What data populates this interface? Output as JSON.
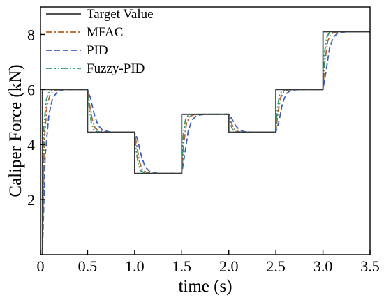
{
  "chart_data": {
    "type": "line",
    "title": "",
    "xlabel": "time (s)",
    "ylabel": "Caliper Force (kN)",
    "xlim": [
      0,
      3.5
    ],
    "ylim": [
      0,
      9
    ],
    "xticks": [
      0,
      0.5,
      1.0,
      1.5,
      2.0,
      2.5,
      3.0,
      3.5
    ],
    "xtick_labels": [
      "0",
      "0.5",
      "1.0",
      "1.5",
      "2.0",
      "2.5",
      "3.0",
      "3.5"
    ],
    "yticks": [
      2,
      4,
      6,
      8
    ],
    "ytick_labels": [
      "2",
      "4",
      "6",
      "8"
    ],
    "grid": false,
    "legend_position": "top-left",
    "series": [
      {
        "name": "Target Value",
        "color": "#3a3a3a",
        "style": "solid",
        "x": [
          0,
          0.02,
          0.02,
          0.5,
          0.5,
          1.0,
          1.0,
          1.5,
          1.5,
          2.0,
          2.0,
          2.5,
          2.5,
          3.0,
          3.0,
          3.5
        ],
        "y": [
          0,
          0,
          6.0,
          6.0,
          4.45,
          4.45,
          2.95,
          2.95,
          5.1,
          5.1,
          4.45,
          4.45,
          6.0,
          6.0,
          8.1,
          8.1
        ]
      },
      {
        "name": "MFAC",
        "color": "#b5652a",
        "style": "dashdot",
        "x": [
          0.02,
          0.04,
          0.07,
          0.1,
          0.14,
          0.2,
          0.5,
          0.52,
          0.55,
          0.58,
          0.62,
          0.7,
          1.0,
          1.02,
          1.05,
          1.08,
          1.12,
          1.2,
          1.5,
          1.52,
          1.55,
          1.58,
          1.62,
          1.7,
          2.0,
          2.02,
          2.05,
          2.08,
          2.12,
          2.2,
          2.5,
          2.52,
          2.55,
          2.58,
          2.62,
          2.7,
          3.0,
          3.02,
          3.05,
          3.08,
          3.12,
          3.2,
          3.5
        ],
        "y": [
          0,
          4.2,
          5.4,
          5.8,
          5.95,
          6.0,
          6.0,
          5.5,
          4.9,
          4.6,
          4.5,
          4.45,
          4.45,
          4.0,
          3.4,
          3.1,
          3.0,
          2.95,
          2.95,
          4.0,
          4.75,
          5.0,
          5.08,
          5.1,
          5.1,
          4.85,
          4.6,
          4.5,
          4.46,
          4.45,
          4.45,
          5.1,
          5.7,
          5.9,
          5.98,
          6.0,
          6.0,
          7.0,
          7.75,
          8.0,
          8.08,
          8.1,
          8.1
        ]
      },
      {
        "name": "PID",
        "color": "#3d5fc4",
        "style": "dashed",
        "x": [
          0.02,
          0.05,
          0.09,
          0.13,
          0.18,
          0.25,
          0.5,
          0.53,
          0.57,
          0.61,
          0.66,
          0.75,
          1.0,
          1.03,
          1.07,
          1.11,
          1.16,
          1.25,
          1.5,
          1.53,
          1.57,
          1.61,
          1.66,
          1.75,
          2.0,
          2.03,
          2.07,
          2.11,
          2.16,
          2.25,
          2.5,
          2.53,
          2.57,
          2.61,
          2.66,
          2.75,
          3.0,
          3.03,
          3.07,
          3.11,
          3.16,
          3.25,
          3.5
        ],
        "y": [
          0,
          3.6,
          5.1,
          5.7,
          5.92,
          6.0,
          6.0,
          5.7,
          5.1,
          4.7,
          4.52,
          4.45,
          4.45,
          4.2,
          3.6,
          3.2,
          3.02,
          2.95,
          2.95,
          3.6,
          4.5,
          4.9,
          5.06,
          5.1,
          5.1,
          4.95,
          4.7,
          4.55,
          4.47,
          4.45,
          4.45,
          4.8,
          5.5,
          5.85,
          5.97,
          6.0,
          6.0,
          6.6,
          7.5,
          7.9,
          8.06,
          8.1,
          8.1
        ]
      },
      {
        "name": "Fuzzy-PID",
        "color": "#2e9a73",
        "style": "dashdotdot",
        "x": [
          0.02,
          0.035,
          0.06,
          0.085,
          0.12,
          0.17,
          0.5,
          0.515,
          0.54,
          0.565,
          0.6,
          0.65,
          1.0,
          1.015,
          1.04,
          1.065,
          1.1,
          1.15,
          1.5,
          1.515,
          1.54,
          1.565,
          1.6,
          1.65,
          2.0,
          2.015,
          2.04,
          2.065,
          2.1,
          2.15,
          2.5,
          2.515,
          2.54,
          2.565,
          2.6,
          2.65,
          3.0,
          3.015,
          3.04,
          3.065,
          3.1,
          3.15,
          3.5
        ],
        "y": [
          0,
          4.6,
          5.6,
          5.88,
          5.97,
          6.0,
          6.0,
          5.4,
          4.8,
          4.55,
          4.47,
          4.45,
          4.45,
          3.8,
          3.25,
          3.05,
          2.98,
          2.95,
          2.95,
          4.3,
          4.9,
          5.05,
          5.09,
          5.1,
          5.1,
          4.8,
          4.55,
          4.48,
          4.46,
          4.45,
          4.45,
          5.3,
          5.8,
          5.95,
          5.99,
          6.0,
          6.0,
          7.3,
          7.9,
          8.05,
          8.09,
          8.1,
          8.1
        ]
      }
    ]
  }
}
